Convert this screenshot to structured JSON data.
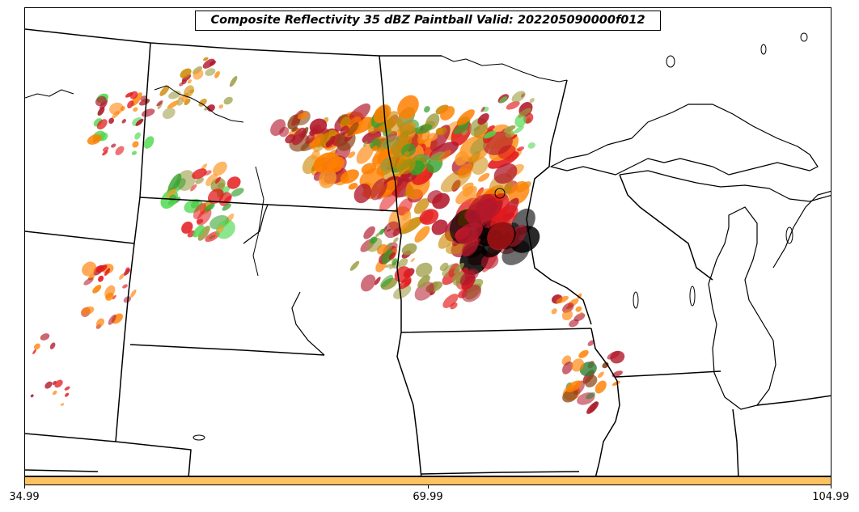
{
  "title": "Composite Reflectivity 35 dBZ Paintball Valid: 202205090000f012",
  "colorbar": {
    "color": "#fec25f",
    "ticks": [
      "34.99",
      "69.99",
      "104.99"
    ]
  },
  "paintball_colors": [
    "#e31a1c",
    "#ff7f00",
    "#fb9a29",
    "#cc8800",
    "#b2182b",
    "#8b4513",
    "#33a02c",
    "#1a9850",
    "#4dd84d",
    "#9a9a40",
    "#2e7d32",
    "#f03b20"
  ]
}
